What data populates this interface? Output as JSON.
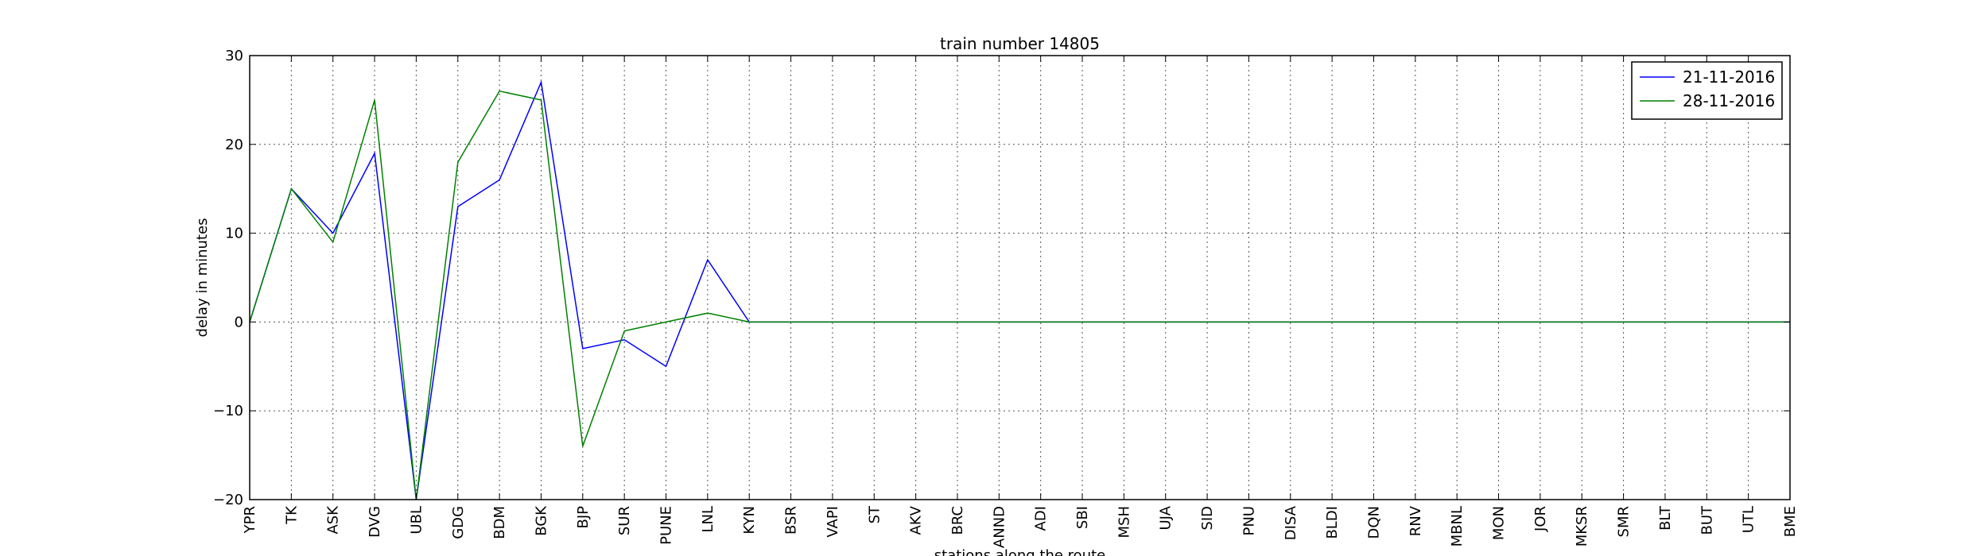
{
  "chart_data": {
    "type": "line",
    "title": "train number 14805",
    "xlabel": "stations along the route",
    "ylabel": "delay in minutes",
    "categories": [
      "YPR",
      "TK",
      "ASK",
      "DVG",
      "UBL",
      "GDG",
      "BDM",
      "BGK",
      "BJP",
      "SUR",
      "PUNE",
      "LNL",
      "KYN",
      "BSR",
      "VAPI",
      "ST",
      "AKV",
      "BRC",
      "ANND",
      "ADI",
      "SBI",
      "MSH",
      "UJA",
      "SID",
      "PNU",
      "DISA",
      "BLDI",
      "DQN",
      "RNV",
      "MBNL",
      "MON",
      "JOR",
      "MKSR",
      "SMR",
      "BLT",
      "BUT",
      "UTL",
      "BME"
    ],
    "ylim": [
      -20,
      30
    ],
    "yticks": [
      -20,
      -10,
      0,
      10,
      20,
      30
    ],
    "grid": true,
    "legend_position": "top-right",
    "series": [
      {
        "name": "21-11-2016",
        "color": "#0000ff",
        "values": [
          0,
          15,
          10,
          19,
          -20,
          13,
          16,
          27,
          -3,
          -2,
          -5,
          7,
          0,
          0,
          0,
          0,
          0,
          0,
          0,
          0,
          0,
          0,
          0,
          0,
          0,
          0,
          0,
          0,
          0,
          0,
          0,
          0,
          0,
          0,
          0,
          0,
          0,
          0
        ]
      },
      {
        "name": "28-11-2016",
        "color": "#008000",
        "values": [
          0,
          15,
          9,
          25,
          -20,
          18,
          26,
          25,
          -14,
          -1,
          0,
          1,
          0,
          0,
          0,
          0,
          0,
          0,
          0,
          0,
          0,
          0,
          0,
          0,
          0,
          0,
          0,
          0,
          0,
          0,
          0,
          0,
          0,
          0,
          0,
          0,
          0,
          0
        ]
      }
    ]
  }
}
